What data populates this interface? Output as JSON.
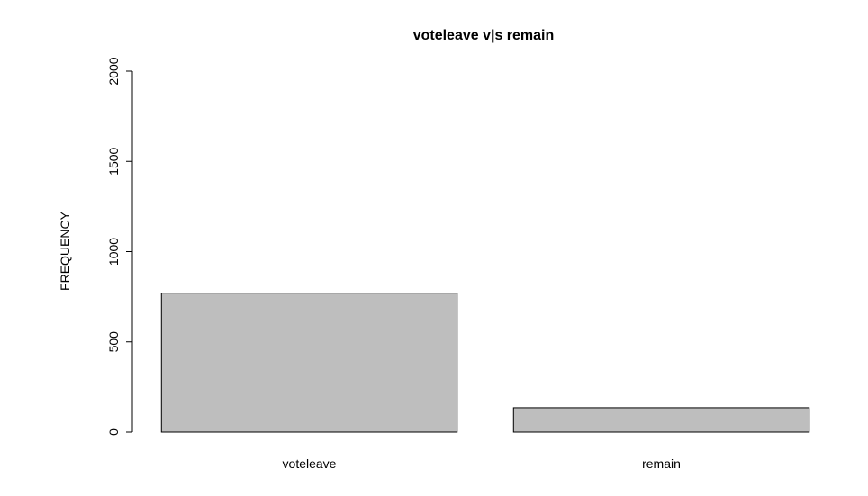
{
  "chart_data": {
    "type": "bar",
    "title": "voteleave v|s remain",
    "xlabel": "",
    "ylabel": "FREQUENCY",
    "categories": [
      "voteleave",
      "remain"
    ],
    "values": [
      770,
      135
    ],
    "ylim": [
      0,
      2000
    ],
    "yticks": [
      0,
      500,
      1000,
      1500,
      2000
    ],
    "grid": false,
    "bar_color": "#bebebe",
    "bar_border_color": "#000000"
  }
}
